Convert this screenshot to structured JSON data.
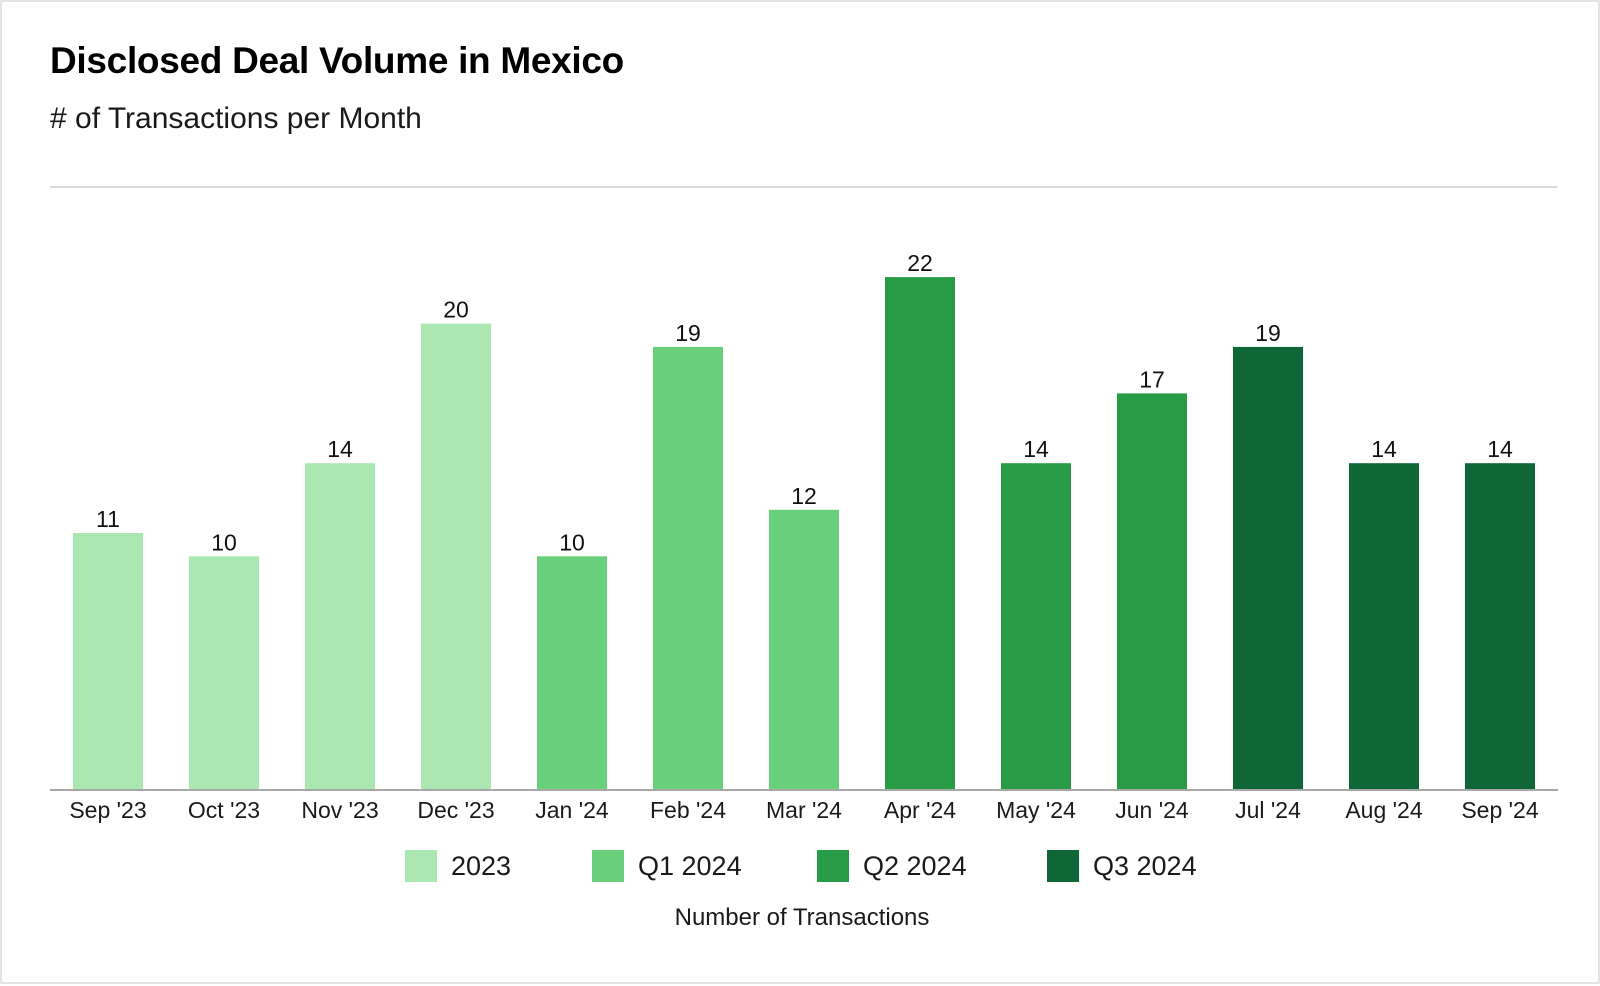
{
  "header": {
    "title": "Disclosed Deal Volume in Mexico",
    "subtitle": "# of Transactions per Month"
  },
  "footer": {
    "label": "Number of Transactions"
  },
  "legend": [
    {
      "label": "2023",
      "color": "#abe7b0"
    },
    {
      "label": "Q1 2024",
      "color": "#69cf7a"
    },
    {
      "label": "Q2 2024",
      "color": "#289b47"
    },
    {
      "label": "Q3 2024",
      "color": "#0f6636"
    }
  ],
  "chart_data": {
    "type": "bar",
    "title": "Disclosed Deal Volume in Mexico",
    "subtitle": "# of Transactions per Month",
    "xlabel": "",
    "ylabel": "",
    "categories": [
      "Sep '23",
      "Oct '23",
      "Nov '23",
      "Dec '23",
      "Jan '24",
      "Feb '24",
      "Mar '24",
      "Apr '24",
      "May '24",
      "Jun '24",
      "Jul '24",
      "Aug '24",
      "Sep '24"
    ],
    "values": [
      11,
      10,
      14,
      20,
      10,
      19,
      12,
      22,
      14,
      17,
      19,
      14,
      14
    ],
    "groups": [
      "2023",
      "2023",
      "2023",
      "2023",
      "Q1 2024",
      "Q1 2024",
      "Q1 2024",
      "Q2 2024",
      "Q2 2024",
      "Q2 2024",
      "Q3 2024",
      "Q3 2024",
      "Q3 2024"
    ],
    "ylim": [
      0,
      22
    ],
    "grid": false,
    "data_labels": true,
    "legend_position": "bottom-center"
  }
}
